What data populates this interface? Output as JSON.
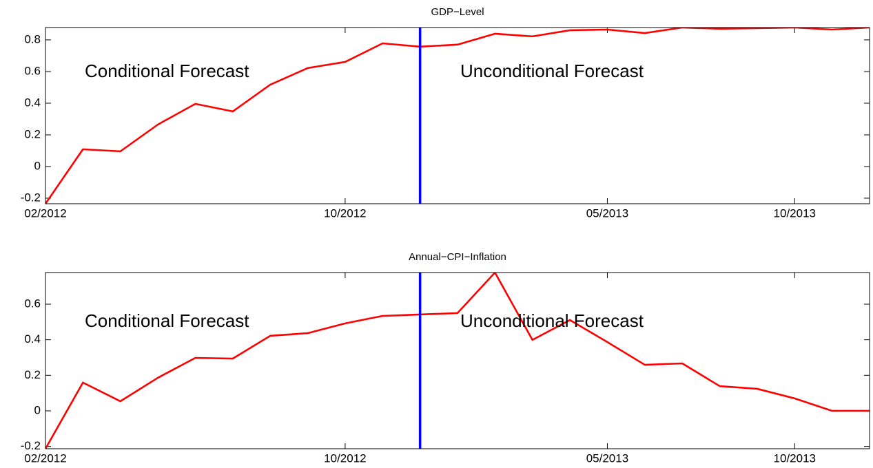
{
  "chart_data": [
    {
      "type": "line",
      "title": "GDP−Level",
      "x": [
        "02/2012",
        "03/2012",
        "04/2012",
        "05/2012",
        "06/2012",
        "07/2012",
        "08/2012",
        "09/2012",
        "10/2012",
        "11/2012",
        "12/2012",
        "01/2013",
        "02/2013",
        "03/2013",
        "04/2013",
        "05/2013",
        "06/2013",
        "07/2013",
        "08/2013",
        "09/2013",
        "10/2013",
        "11/2013",
        "12/2013"
      ],
      "values": [
        -0.235,
        0.109,
        0.096,
        0.265,
        0.396,
        0.348,
        0.517,
        0.622,
        0.661,
        0.778,
        0.757,
        0.77,
        0.839,
        0.822,
        0.861,
        0.865,
        0.843,
        0.878,
        0.87,
        0.874,
        0.878,
        0.865,
        0.878
      ],
      "color": "#ff0000",
      "xlim": [
        "02/2012",
        "12/2013"
      ],
      "xticks": [
        "02/2012",
        "10/2012",
        "05/2013",
        "10/2013"
      ],
      "ylim": [
        -0.235,
        0.878
      ],
      "yticks": [
        -0.2,
        0,
        0.2,
        0.4,
        0.6,
        0.8
      ],
      "x_marker": "12/2012",
      "marker_color": "#0000ff",
      "annotations": [
        "Conditional Forecast",
        "Unconditional Forecast"
      ]
    },
    {
      "type": "line",
      "title": "Annual−CPI−Inflation",
      "x": [
        "02/2012",
        "03/2012",
        "04/2012",
        "05/2012",
        "06/2012",
        "07/2012",
        "08/2012",
        "09/2012",
        "10/2012",
        "11/2012",
        "12/2012",
        "01/2013",
        "02/2013",
        "03/2013",
        "04/2013",
        "05/2013",
        "06/2013",
        "07/2013",
        "08/2013",
        "09/2013",
        "10/2013",
        "11/2013",
        "12/2013"
      ],
      "values": [
        -0.213,
        0.159,
        0.054,
        0.186,
        0.298,
        0.294,
        0.422,
        0.437,
        0.492,
        0.534,
        0.542,
        0.55,
        0.778,
        0.399,
        0.511,
        0.387,
        0.259,
        0.267,
        0.139,
        0.124,
        0.07,
        0,
        0
      ],
      "color": "#ff0000",
      "xlim": [
        "02/2012",
        "12/2013"
      ],
      "xticks": [
        "02/2012",
        "10/2012",
        "05/2013",
        "10/2013"
      ],
      "ylim": [
        -0.213,
        0.778
      ],
      "yticks": [
        -0.2,
        0,
        0.2,
        0.4,
        0.6
      ],
      "x_marker": "12/2012",
      "marker_color": "#0000ff",
      "annotations": [
        "Conditional Forecast",
        "Unconditional Forecast"
      ]
    }
  ]
}
